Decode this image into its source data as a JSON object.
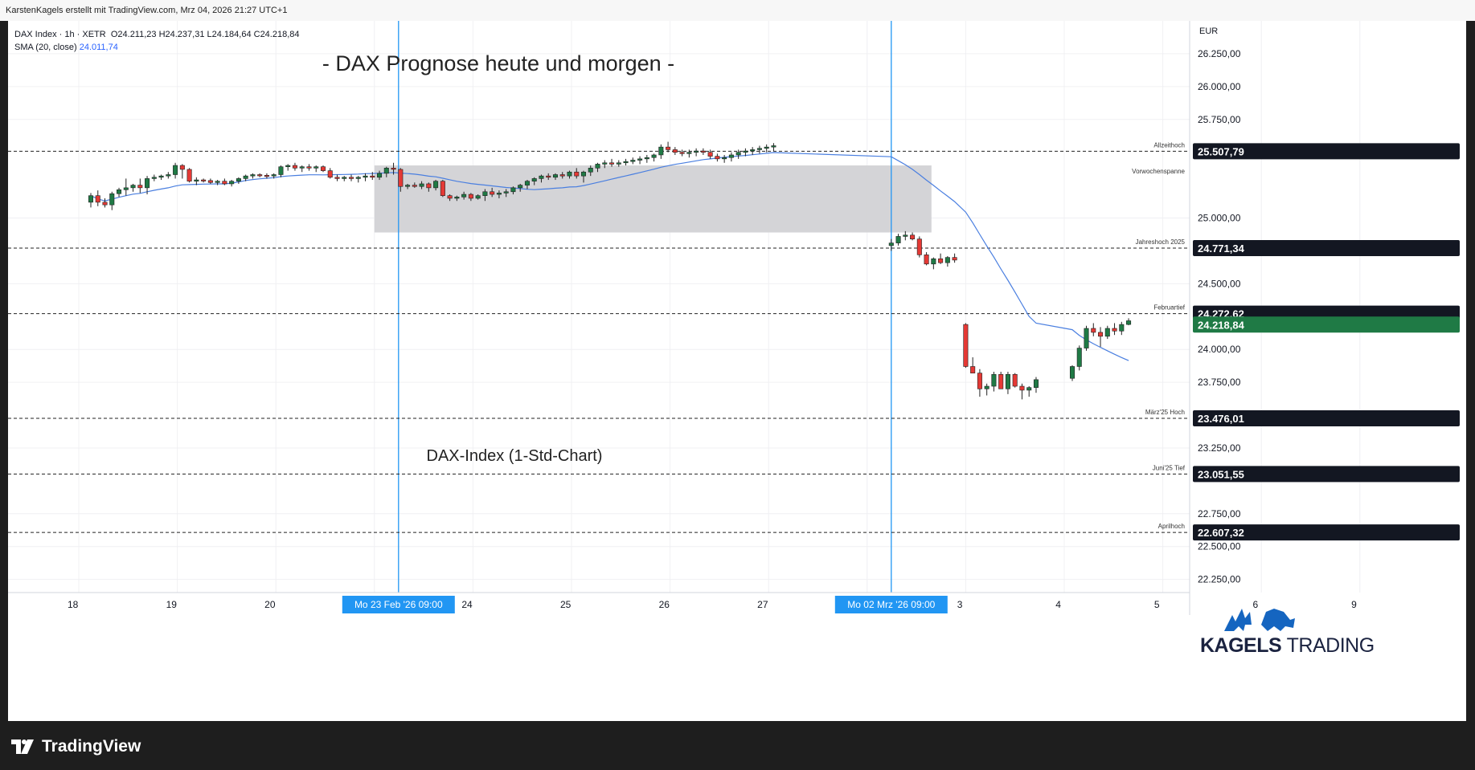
{
  "header": {
    "credit": "KarstenKagels erstellt mit TradingView.com, Mrz 04, 2026 21:27 UTC+1"
  },
  "legend": {
    "symbol_line": "DAX Index · 1h · XETR",
    "ohlc": "O24.211,23  H24.237,31  L24.184,64  C24.218,84",
    "sma_label": "SMA (20, close)",
    "sma_value": "24.011,74"
  },
  "annotations": {
    "title": "- DAX Prognose heute und morgen -",
    "subtitle": "DAX-Index (1-Std-Chart)"
  },
  "brand": {
    "name_bold": "KAGELS",
    "name_regular": "TRADING"
  },
  "footer": {
    "logo_text": "TradingView"
  },
  "colors": {
    "up": "#1f7a45",
    "down": "#e53935",
    "sma": "#4a7fe0",
    "vline": "#2196f3",
    "zone": "#cfcfd3",
    "price_current": "#1f7a45",
    "axis_label_bg": "#131722"
  },
  "chart_data": {
    "type": "candlestick",
    "title": "- DAX Prognose heute und morgen -",
    "subtitle": "DAX-Index (1-Std-Chart)",
    "currency": "EUR",
    "ylim": [
      22150,
      26500
    ],
    "y_ticks": [
      "26.250,00",
      "26.000,00",
      "25.750,00",
      "25.000,00",
      "24.500,00",
      "24.000,00",
      "23.750,00",
      "23.250,00",
      "22.750,00",
      "22.500,00",
      "22.250,00"
    ],
    "x_ticks": [
      "18",
      "19",
      "20",
      "Mo 23 Feb '26   09:00",
      "24",
      "25",
      "26",
      "27",
      "Mo 02 Mrz '26   09:00",
      "3",
      "4",
      "5",
      "6",
      "9"
    ],
    "x_tick_day_index": [
      0,
      1,
      2,
      3,
      4,
      5,
      6,
      7,
      8,
      9,
      10,
      11,
      12,
      13
    ],
    "highlighted_x": [
      3,
      8
    ],
    "candles_per_day": 14,
    "series": [
      {
        "name": "DAX Index",
        "candles": [
          [
            25120,
            25190,
            25080,
            25170
          ],
          [
            25170,
            25210,
            25090,
            25120
          ],
          [
            25120,
            25150,
            25080,
            25100
          ],
          [
            25100,
            25200,
            25060,
            25185
          ],
          [
            25185,
            25230,
            25160,
            25215
          ],
          [
            25215,
            25300,
            25170,
            25230
          ],
          [
            25230,
            25260,
            25200,
            25250
          ],
          [
            25250,
            25300,
            25190,
            25230
          ],
          [
            25230,
            25320,
            25180,
            25300
          ],
          [
            25300,
            25330,
            25280,
            25310
          ],
          [
            25310,
            25330,
            25290,
            25320
          ],
          [
            25320,
            25350,
            25300,
            25330
          ],
          [
            25330,
            25420,
            25300,
            25400
          ],
          [
            25400,
            25410,
            25300,
            25370
          ],
          [
            25370,
            25380,
            25270,
            25280
          ],
          [
            25280,
            25310,
            25250,
            25290
          ],
          [
            25290,
            25300,
            25270,
            25285
          ],
          [
            25285,
            25300,
            25260,
            25270
          ],
          [
            25270,
            25290,
            25250,
            25280
          ],
          [
            25280,
            25300,
            25250,
            25260
          ],
          [
            25260,
            25290,
            25240,
            25280
          ],
          [
            25280,
            25310,
            25260,
            25300
          ],
          [
            25300,
            25330,
            25280,
            25320
          ],
          [
            25320,
            25340,
            25300,
            25330
          ],
          [
            25330,
            25340,
            25310,
            25325
          ],
          [
            25325,
            25340,
            25300,
            25320
          ],
          [
            25320,
            25340,
            25300,
            25330
          ],
          [
            25330,
            25400,
            25310,
            25390
          ],
          [
            25390,
            25410,
            25360,
            25400
          ],
          [
            25400,
            25420,
            25360,
            25380
          ],
          [
            25380,
            25400,
            25350,
            25390
          ],
          [
            25390,
            25410,
            25360,
            25380
          ],
          [
            25380,
            25400,
            25350,
            25390
          ],
          [
            25390,
            25400,
            25350,
            25360
          ],
          [
            25360,
            25380,
            25300,
            25310
          ],
          [
            25310,
            25330,
            25280,
            25300
          ],
          [
            25300,
            25320,
            25280,
            25310
          ],
          [
            25310,
            25330,
            25280,
            25300
          ],
          [
            25300,
            25320,
            25270,
            25310
          ],
          [
            25310,
            25340,
            25280,
            25320
          ],
          [
            25320,
            25350,
            25290,
            25310
          ],
          [
            25310,
            25360,
            25290,
            25340
          ],
          [
            25340,
            25390,
            25310,
            25380
          ],
          [
            25380,
            25420,
            25330,
            25370
          ],
          [
            25370,
            25380,
            25200,
            25240
          ],
          [
            25240,
            25260,
            25220,
            25250
          ],
          [
            25250,
            25270,
            25230,
            25240
          ],
          [
            25240,
            25280,
            25220,
            25260
          ],
          [
            25260,
            25270,
            25200,
            25230
          ],
          [
            25230,
            25290,
            25210,
            25280
          ],
          [
            25280,
            25290,
            25160,
            25170
          ],
          [
            25170,
            25180,
            25130,
            25150
          ],
          [
            25150,
            25170,
            25130,
            25160
          ],
          [
            25160,
            25200,
            25140,
            25180
          ],
          [
            25180,
            25190,
            25130,
            25150
          ],
          [
            25150,
            25180,
            25140,
            25170
          ],
          [
            25170,
            25220,
            25130,
            25200
          ],
          [
            25200,
            25230,
            25160,
            25180
          ],
          [
            25180,
            25210,
            25150,
            25190
          ],
          [
            25190,
            25220,
            25160,
            25200
          ],
          [
            25200,
            25240,
            25180,
            25230
          ],
          [
            25230,
            25260,
            25200,
            25250
          ],
          [
            25250,
            25290,
            25220,
            25280
          ],
          [
            25280,
            25310,
            25250,
            25300
          ],
          [
            25300,
            25330,
            25270,
            25320
          ],
          [
            25320,
            25340,
            25290,
            25310
          ],
          [
            25310,
            25340,
            25290,
            25330
          ],
          [
            25330,
            25350,
            25300,
            25320
          ],
          [
            25320,
            25360,
            25300,
            25350
          ],
          [
            25350,
            25380,
            25300,
            25320
          ],
          [
            25320,
            25360,
            25270,
            25350
          ],
          [
            25350,
            25400,
            25320,
            25380
          ],
          [
            25380,
            25420,
            25350,
            25410
          ],
          [
            25410,
            25440,
            25380,
            25420
          ],
          [
            25420,
            25450,
            25390,
            25410
          ],
          [
            25410,
            25440,
            25390,
            25420
          ],
          [
            25420,
            25450,
            25400,
            25430
          ],
          [
            25430,
            25460,
            25410,
            25440
          ],
          [
            25440,
            25470,
            25410,
            25450
          ],
          [
            25450,
            25480,
            25420,
            25460
          ],
          [
            25460,
            25490,
            25430,
            25480
          ],
          [
            25480,
            25560,
            25450,
            25540
          ],
          [
            25540,
            25580,
            25500,
            25520
          ],
          [
            25520,
            25540,
            25480,
            25500
          ],
          [
            25500,
            25520,
            25470,
            25490
          ],
          [
            25490,
            25520,
            25460,
            25500
          ],
          [
            25500,
            25530,
            25470,
            25510
          ],
          [
            25510,
            25530,
            25480,
            25500
          ],
          [
            25500,
            25520,
            25450,
            25470
          ],
          [
            25470,
            25490,
            25430,
            25450
          ],
          [
            25450,
            25480,
            25420,
            25460
          ],
          [
            25460,
            25500,
            25430,
            25480
          ],
          [
            25480,
            25520,
            25450,
            25500
          ],
          [
            25500,
            25530,
            25470,
            25510
          ],
          [
            25510,
            25540,
            25480,
            25520
          ],
          [
            25520,
            25550,
            25490,
            25530
          ],
          [
            25530,
            25560,
            25500,
            25540
          ],
          [
            25540,
            25570,
            25510,
            25550
          ],
          [
            24790,
            24840,
            24750,
            24810
          ],
          [
            24810,
            24880,
            24790,
            24860
          ],
          [
            24860,
            24900,
            24830,
            24870
          ],
          [
            24870,
            24890,
            24830,
            24840
          ],
          [
            24840,
            24860,
            24700,
            24720
          ],
          [
            24720,
            24740,
            24640,
            24650
          ],
          [
            24650,
            24700,
            24610,
            24690
          ],
          [
            24690,
            24730,
            24650,
            24660
          ],
          [
            24660,
            24710,
            24630,
            24700
          ],
          [
            24700,
            24730,
            24660,
            24680
          ],
          [
            24190,
            24200,
            23860,
            23870
          ],
          [
            23870,
            23940,
            23820,
            23820
          ],
          [
            23820,
            23850,
            23640,
            23700
          ],
          [
            23700,
            23740,
            23650,
            23720
          ],
          [
            23720,
            23830,
            23680,
            23810
          ],
          [
            23810,
            23830,
            23700,
            23700
          ],
          [
            23700,
            23830,
            23660,
            23810
          ],
          [
            23810,
            23820,
            23710,
            23720
          ],
          [
            23720,
            23740,
            23620,
            23690
          ],
          [
            23690,
            23720,
            23640,
            23710
          ],
          [
            23710,
            23790,
            23670,
            23770
          ],
          [
            23780,
            23880,
            23760,
            23870
          ],
          [
            23870,
            24030,
            23840,
            24010
          ],
          [
            24010,
            24180,
            23990,
            24160
          ],
          [
            24160,
            24200,
            24100,
            24130
          ],
          [
            24130,
            24170,
            24020,
            24100
          ],
          [
            24100,
            24180,
            24080,
            24160
          ],
          [
            24160,
            24200,
            24110,
            24140
          ],
          [
            24140,
            24210,
            24110,
            24190
          ],
          [
            24190,
            24237,
            24184,
            24218
          ]
        ]
      },
      {
        "name": "SMA (20, close)",
        "value": 24011.74
      }
    ],
    "levels": [
      {
        "name": "Allzeithoch",
        "value": "25.507,79",
        "v": 25507.79,
        "style": "dashed"
      },
      {
        "name": "Jahreshoch 2025",
        "value": "24.771,34",
        "v": 24771.34,
        "style": "dashed"
      },
      {
        "name": "Februartief",
        "value": "24.272,62",
        "v": 24272.62,
        "style": "dashed"
      },
      {
        "name": "März'25 Hoch",
        "value": "23.476,01",
        "v": 23476.01,
        "style": "dashed"
      },
      {
        "name": "Juni'25 Tief",
        "value": "23.051,55",
        "v": 23051.55,
        "style": "dashed"
      },
      {
        "name": "Aprilhoch",
        "value": "22.607,32",
        "v": 22607.32,
        "style": "dashed"
      }
    ],
    "zone": {
      "name": "Vorwochenspanne",
      "low": 24890,
      "high": 25400
    },
    "current_price": {
      "value": "24.218,84",
      "v": 24218.84
    }
  }
}
